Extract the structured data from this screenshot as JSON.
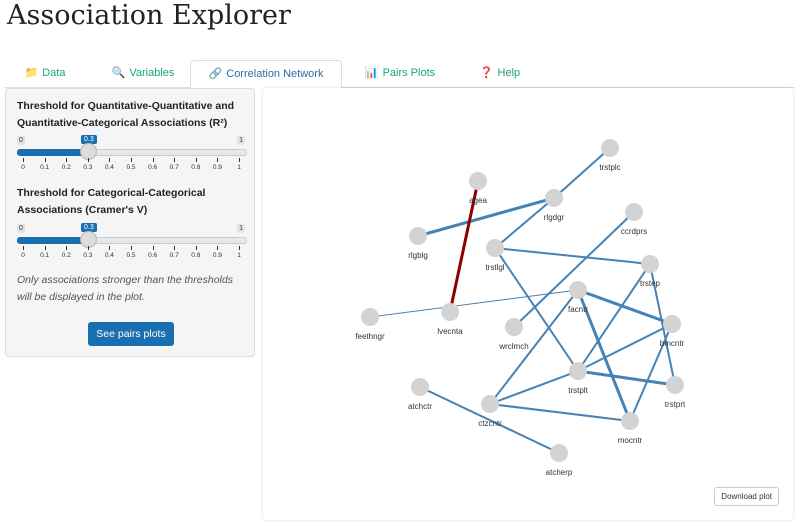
{
  "app_title": "Association Explorer",
  "tabs": [
    {
      "label": "Data",
      "icon": "folder-icon",
      "active": false
    },
    {
      "label": "Variables",
      "icon": "magnifier-icon",
      "active": false
    },
    {
      "label": "Correlation Network",
      "icon": "link-icon",
      "active": true
    },
    {
      "label": "Pairs Plots",
      "icon": "bar-chart-icon",
      "active": false
    },
    {
      "label": "Help",
      "icon": "question-icon",
      "active": false
    }
  ],
  "sidebar": {
    "slider1": {
      "label": "Threshold for Quantitative-Quantitative and Quantitative-Categorical Associations (R²)",
      "min": "0",
      "max": "1",
      "value": "0.3",
      "ticks": [
        "0",
        "0.1",
        "0.2",
        "0.3",
        "0.4",
        "0.5",
        "0.6",
        "0.7",
        "0.8",
        "0.9",
        "1"
      ]
    },
    "slider2": {
      "label": "Threshold for Categorical-Categorical Associations (Cramer's V)",
      "min": "0",
      "max": "1",
      "value": "0.3",
      "ticks": [
        "0",
        "0.1",
        "0.2",
        "0.3",
        "0.4",
        "0.5",
        "0.6",
        "0.7",
        "0.8",
        "0.9",
        "1"
      ]
    },
    "note": "Only associations stronger than the thresholds will be displayed in the plot.",
    "button": "See pairs plots"
  },
  "plot": {
    "download_label": "Download plot",
    "colors": {
      "positive": "#4682b4",
      "negative": "#8b0000",
      "node": "#d3d3d3"
    },
    "nodes": [
      "trstplc",
      "agea",
      "rlgdgr",
      "ccrdprs",
      "rlgblg",
      "trstlgl",
      "trstep",
      "facntr",
      "feethngr",
      "lvecnta",
      "wrclmch",
      "bmcntr",
      "trstplt",
      "trstprt",
      "atchctr",
      "ctzcntr",
      "mocntr",
      "atcherp"
    ],
    "edges": [
      {
        "from": "trstplc",
        "to": "rlgdgr",
        "sign": "positive",
        "strength": "medium"
      },
      {
        "from": "rlgdgr",
        "to": "rlgblg",
        "sign": "positive",
        "strength": "strong"
      },
      {
        "from": "rlgdgr",
        "to": "trstlgl",
        "sign": "positive",
        "strength": "medium"
      },
      {
        "from": "agea",
        "to": "lvecnta",
        "sign": "negative",
        "strength": "strong"
      },
      {
        "from": "trstlgl",
        "to": "trstep",
        "sign": "positive",
        "strength": "medium"
      },
      {
        "from": "trstlgl",
        "to": "trstplt",
        "sign": "positive",
        "strength": "medium"
      },
      {
        "from": "ccrdprs",
        "to": "wrclmch",
        "sign": "positive",
        "strength": "medium"
      },
      {
        "from": "feethngr",
        "to": "facntr",
        "sign": "positive",
        "strength": "weak"
      },
      {
        "from": "facntr",
        "to": "bmcntr",
        "sign": "positive",
        "strength": "strong"
      },
      {
        "from": "facntr",
        "to": "mocntr",
        "sign": "positive",
        "strength": "strong"
      },
      {
        "from": "facntr",
        "to": "ctzcntr",
        "sign": "positive",
        "strength": "medium"
      },
      {
        "from": "trstep",
        "to": "trstplt",
        "sign": "positive",
        "strength": "medium"
      },
      {
        "from": "trstep",
        "to": "trstprt",
        "sign": "positive",
        "strength": "medium"
      },
      {
        "from": "bmcntr",
        "to": "trstplt",
        "sign": "positive",
        "strength": "medium"
      },
      {
        "from": "bmcntr",
        "to": "mocntr",
        "sign": "positive",
        "strength": "medium"
      },
      {
        "from": "trstplt",
        "to": "trstprt",
        "sign": "positive",
        "strength": "strong"
      },
      {
        "from": "trstplt",
        "to": "ctzcntr",
        "sign": "positive",
        "strength": "medium"
      },
      {
        "from": "ctzcntr",
        "to": "mocntr",
        "sign": "positive",
        "strength": "medium"
      },
      {
        "from": "atchctr",
        "to": "atcherp",
        "sign": "positive",
        "strength": "medium"
      }
    ]
  }
}
